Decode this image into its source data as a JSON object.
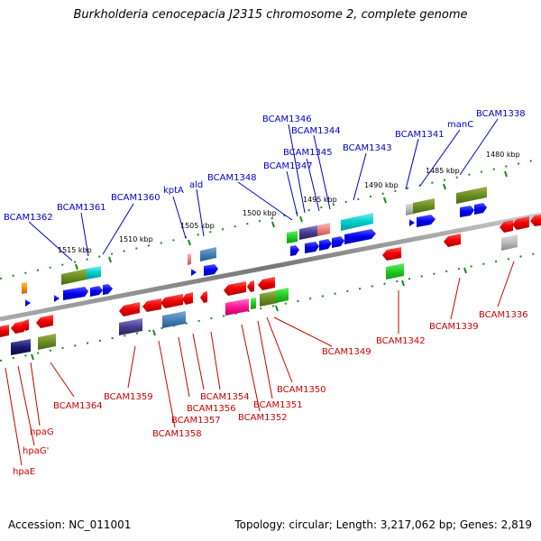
{
  "title": "Burkholderia cenocepacia J2315 chromosome 2, complete genome",
  "footer": {
    "accession": "Accession: NC_011001",
    "summary": "Topology: circular; Length: 3,217,062 bp; Genes: 2,819"
  },
  "ruler": [
    "1515 kbp",
    "1510 kbp",
    "1505 kbp",
    "1500 kbp",
    "1495 kbp",
    "1490 kbp",
    "1485 kbp",
    "1480 kbp"
  ],
  "labels_top": [
    "BCAM1362",
    "BCAM1361",
    "BCAM1360",
    "kptA",
    "ald",
    "BCAM1348",
    "BCAM1347",
    "BCAM1346",
    "BCAM1344",
    "BCAM1345",
    "BCAM1343",
    "BCAM1341",
    "manC",
    "BCAM1338"
  ],
  "labels_bottom": [
    "hpaE",
    "hpaG'",
    "hpaG",
    "BCAM1364",
    "BCAM1359",
    "BCAM1358",
    "BCAM1357",
    "BCAM1356",
    "BCAM1354",
    "BCAM1352",
    "BCAM1351",
    "BCAM1350",
    "BCAM1349",
    "BCAM1342",
    "BCAM1339",
    "BCAM1336"
  ],
  "colors": {
    "forward_label": "#0000cc",
    "reverse_label": "#cc0000",
    "forward_gene": "#0000ee",
    "reverse_gene": "#ee0000",
    "backbone": "#888888",
    "tick": "#1a8a1a"
  }
}
